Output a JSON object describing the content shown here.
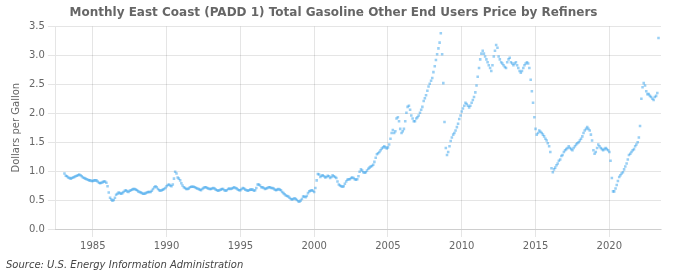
{
  "chart_data": {
    "type": "scatter",
    "title": "Monthly East Coast (PADD 1) Total Gasoline Other End Users Price by Refiners",
    "y_label": "Dollars per Gallon",
    "annotations": [
      "Source: U.S. Energy Information Administration"
    ],
    "marker": "square",
    "grid": true,
    "xlim": [
      1982.5,
      2023.5
    ],
    "xticks": [
      1985,
      1990,
      1995,
      2000,
      2005,
      2010,
      2015,
      2020
    ],
    "ylim": [
      0.0,
      3.5
    ],
    "yticks": [
      {
        "value": 0.0,
        "label": "0.0"
      },
      0.5,
      {
        "value": 1.0,
        "label": "1.0"
      },
      1.5,
      {
        "value": 2.0,
        "label": "2.0"
      },
      2.5,
      {
        "value": 3.0,
        "label": "3.0"
      },
      3.5
    ],
    "x": [
      1983.08,
      1983.17,
      1983.25,
      1983.33,
      1983.42,
      1983.5,
      1983.58,
      1983.67,
      1983.75,
      1983.83,
      1983.92,
      1984.0,
      1984.08,
      1984.17,
      1984.25,
      1984.33,
      1984.42,
      1984.5,
      1984.58,
      1984.67,
      1984.75,
      1984.83,
      1984.92,
      1985.0,
      1985.08,
      1985.17,
      1985.25,
      1985.33,
      1985.42,
      1985.5,
      1985.58,
      1985.67,
      1985.75,
      1985.83,
      1985.92,
      1986.0,
      1986.08,
      1986.17,
      1986.25,
      1986.33,
      1986.42,
      1986.5,
      1986.58,
      1986.67,
      1986.75,
      1986.83,
      1986.92,
      1987.0,
      1987.08,
      1987.17,
      1987.25,
      1987.33,
      1987.42,
      1987.5,
      1987.58,
      1987.67,
      1987.75,
      1987.83,
      1987.92,
      1988.0,
      1988.08,
      1988.17,
      1988.25,
      1988.33,
      1988.42,
      1988.5,
      1988.58,
      1988.67,
      1988.75,
      1988.83,
      1988.92,
      1989.0,
      1989.08,
      1989.17,
      1989.25,
      1989.33,
      1989.42,
      1989.5,
      1989.58,
      1989.67,
      1989.75,
      1989.83,
      1989.92,
      1990.0,
      1990.08,
      1990.17,
      1990.25,
      1990.33,
      1990.42,
      1990.5,
      1990.58,
      1990.67,
      1990.75,
      1990.83,
      1990.92,
      1991.0,
      1991.08,
      1991.17,
      1991.25,
      1991.33,
      1991.42,
      1991.5,
      1991.58,
      1991.67,
      1991.75,
      1991.83,
      1991.92,
      1992.0,
      1992.08,
      1992.17,
      1992.25,
      1992.33,
      1992.42,
      1992.5,
      1992.58,
      1992.67,
      1992.75,
      1992.83,
      1992.92,
      1993.0,
      1993.08,
      1993.17,
      1993.25,
      1993.33,
      1993.42,
      1993.5,
      1993.58,
      1993.67,
      1993.75,
      1993.83,
      1993.92,
      1994.0,
      1994.08,
      1994.17,
      1994.25,
      1994.33,
      1994.42,
      1994.5,
      1994.58,
      1994.67,
      1994.75,
      1994.83,
      1994.92,
      1995.0,
      1995.08,
      1995.17,
      1995.25,
      1995.33,
      1995.42,
      1995.5,
      1995.58,
      1995.67,
      1995.75,
      1995.83,
      1995.92,
      1996.0,
      1996.08,
      1996.17,
      1996.25,
      1996.33,
      1996.42,
      1996.5,
      1996.58,
      1996.67,
      1996.75,
      1996.83,
      1996.92,
      1997.0,
      1997.08,
      1997.17,
      1997.25,
      1997.33,
      1997.42,
      1997.5,
      1997.58,
      1997.67,
      1997.75,
      1997.83,
      1997.92,
      1998.0,
      1998.08,
      1998.17,
      1998.25,
      1998.33,
      1998.42,
      1998.5,
      1998.58,
      1998.67,
      1998.75,
      1998.83,
      1998.92,
      1999.0,
      1999.08,
      1999.17,
      1999.25,
      1999.33,
      1999.42,
      1999.5,
      1999.58,
      1999.67,
      1999.75,
      1999.83,
      1999.92,
      2000.0,
      2000.08,
      2000.17,
      2000.25,
      2000.33,
      2000.42,
      2000.5,
      2000.58,
      2000.67,
      2000.75,
      2000.83,
      2000.92,
      2001.0,
      2001.08,
      2001.17,
      2001.25,
      2001.33,
      2001.42,
      2001.5,
      2001.58,
      2001.67,
      2001.75,
      2001.83,
      2001.92,
      2002.0,
      2002.08,
      2002.17,
      2002.25,
      2002.33,
      2002.42,
      2002.5,
      2002.58,
      2002.67,
      2002.75,
      2002.83,
      2002.92,
      2003.0,
      2003.08,
      2003.17,
      2003.25,
      2003.33,
      2003.42,
      2003.5,
      2003.58,
      2003.67,
      2003.75,
      2003.83,
      2003.92,
      2004.0,
      2004.08,
      2004.17,
      2004.25,
      2004.33,
      2004.42,
      2004.5,
      2004.58,
      2004.67,
      2004.75,
      2004.83,
      2004.92,
      2005.0,
      2005.08,
      2005.17,
      2005.25,
      2005.33,
      2005.42,
      2005.5,
      2005.58,
      2005.67,
      2005.75,
      2005.83,
      2005.92,
      2006.0,
      2006.08,
      2006.17,
      2006.25,
      2006.33,
      2006.42,
      2006.5,
      2006.58,
      2006.67,
      2006.75,
      2006.83,
      2006.92,
      2007.0,
      2007.08,
      2007.17,
      2007.25,
      2007.33,
      2007.42,
      2007.5,
      2007.58,
      2007.67,
      2007.75,
      2007.83,
      2007.92,
      2008.0,
      2008.08,
      2008.17,
      2008.25,
      2008.33,
      2008.42,
      2008.5,
      2008.58,
      2008.67,
      2008.75,
      2008.83,
      2008.92,
      2009.0,
      2009.08,
      2009.17,
      2009.25,
      2009.33,
      2009.42,
      2009.5,
      2009.58,
      2009.67,
      2009.75,
      2009.83,
      2009.92,
      2010.0,
      2010.08,
      2010.17,
      2010.25,
      2010.33,
      2010.42,
      2010.5,
      2010.58,
      2010.67,
      2010.75,
      2010.83,
      2010.92,
      2011.0,
      2011.08,
      2011.17,
      2011.25,
      2011.33,
      2011.42,
      2011.5,
      2011.58,
      2011.67,
      2011.75,
      2011.83,
      2011.92,
      2012.0,
      2012.08,
      2012.17,
      2012.25,
      2012.33,
      2012.42,
      2012.5,
      2012.58,
      2012.67,
      2012.75,
      2012.83,
      2012.92,
      2013.0,
      2013.08,
      2013.17,
      2013.25,
      2013.33,
      2013.42,
      2013.5,
      2013.58,
      2013.67,
      2013.75,
      2013.83,
      2013.92,
      2014.0,
      2014.08,
      2014.17,
      2014.25,
      2014.33,
      2014.42,
      2014.5,
      2014.58,
      2014.67,
      2014.75,
      2014.83,
      2014.92,
      2015.0,
      2015.08,
      2015.17,
      2015.25,
      2015.33,
      2015.42,
      2015.5,
      2015.58,
      2015.67,
      2015.75,
      2015.83,
      2015.92,
      2016.0,
      2016.08,
      2016.17,
      2016.25,
      2016.33,
      2016.42,
      2016.5,
      2016.58,
      2016.67,
      2016.75,
      2016.83,
      2016.92,
      2017.0,
      2017.08,
      2017.17,
      2017.25,
      2017.33,
      2017.42,
      2017.5,
      2017.58,
      2017.67,
      2017.75,
      2017.83,
      2017.92,
      2018.0,
      2018.08,
      2018.17,
      2018.25,
      2018.33,
      2018.42,
      2018.5,
      2018.58,
      2018.67,
      2018.75,
      2018.83,
      2018.92,
      2019.0,
      2019.08,
      2019.17,
      2019.25,
      2019.33,
      2019.42,
      2019.5,
      2019.58,
      2019.67,
      2019.75,
      2019.83,
      2019.92,
      2020.0,
      2020.08,
      2020.17,
      2020.25,
      2020.33,
      2020.42,
      2020.5,
      2020.58,
      2020.67,
      2020.75,
      2020.83,
      2020.92,
      2021.0,
      2021.08,
      2021.17,
      2021.25,
      2021.33,
      2021.42,
      2021.5,
      2021.58,
      2021.67,
      2021.75,
      2021.83,
      2021.92,
      2022.0,
      2022.08,
      2022.17,
      2022.25,
      2022.33,
      2022.42,
      2022.5,
      2022.58,
      2022.67,
      2022.75,
      2022.83,
      2022.92,
      2023.0,
      2023.08,
      2023.17,
      2023.25,
      2023.33
    ],
    "values": [
      0.96,
      0.92,
      0.91,
      0.89,
      0.88,
      0.87,
      0.88,
      0.89,
      0.9,
      0.91,
      0.92,
      0.93,
      0.94,
      0.93,
      0.91,
      0.89,
      0.88,
      0.87,
      0.86,
      0.85,
      0.84,
      0.84,
      0.83,
      0.83,
      0.84,
      0.84,
      0.84,
      0.82,
      0.8,
      0.79,
      0.8,
      0.81,
      0.82,
      0.82,
      0.8,
      0.74,
      0.63,
      0.54,
      0.51,
      0.49,
      0.5,
      0.54,
      0.59,
      0.61,
      0.63,
      0.62,
      0.61,
      0.62,
      0.64,
      0.66,
      0.67,
      0.65,
      0.64,
      0.66,
      0.67,
      0.68,
      0.69,
      0.69,
      0.68,
      0.67,
      0.65,
      0.64,
      0.63,
      0.62,
      0.61,
      0.61,
      0.62,
      0.63,
      0.64,
      0.64,
      0.64,
      0.66,
      0.69,
      0.72,
      0.74,
      0.72,
      0.69,
      0.67,
      0.66,
      0.67,
      0.68,
      0.69,
      0.71,
      0.74,
      0.76,
      0.77,
      0.75,
      0.74,
      0.77,
      0.87,
      0.99,
      0.96,
      0.89,
      0.87,
      0.84,
      0.79,
      0.75,
      0.72,
      0.71,
      0.69,
      0.69,
      0.7,
      0.72,
      0.73,
      0.73,
      0.73,
      0.72,
      0.71,
      0.7,
      0.69,
      0.68,
      0.67,
      0.69,
      0.71,
      0.72,
      0.72,
      0.71,
      0.7,
      0.69,
      0.69,
      0.7,
      0.71,
      0.7,
      0.68,
      0.67,
      0.66,
      0.67,
      0.68,
      0.69,
      0.69,
      0.67,
      0.66,
      0.67,
      0.69,
      0.7,
      0.69,
      0.7,
      0.71,
      0.72,
      0.71,
      0.7,
      0.68,
      0.67,
      0.67,
      0.69,
      0.71,
      0.7,
      0.68,
      0.67,
      0.66,
      0.67,
      0.68,
      0.68,
      0.68,
      0.66,
      0.67,
      0.71,
      0.77,
      0.77,
      0.75,
      0.72,
      0.72,
      0.71,
      0.69,
      0.7,
      0.71,
      0.72,
      0.72,
      0.71,
      0.71,
      0.7,
      0.68,
      0.67,
      0.68,
      0.69,
      0.68,
      0.67,
      0.64,
      0.62,
      0.6,
      0.58,
      0.57,
      0.56,
      0.54,
      0.52,
      0.51,
      0.52,
      0.53,
      0.52,
      0.5,
      0.48,
      0.47,
      0.49,
      0.52,
      0.56,
      0.56,
      0.55,
      0.57,
      0.62,
      0.65,
      0.66,
      0.67,
      0.66,
      0.64,
      0.71,
      0.84,
      0.95,
      0.94,
      0.9,
      0.92,
      0.93,
      0.91,
      0.89,
      0.9,
      0.92,
      0.91,
      0.88,
      0.9,
      0.93,
      0.91,
      0.9,
      0.88,
      0.82,
      0.77,
      0.75,
      0.74,
      0.73,
      0.74,
      0.78,
      0.82,
      0.85,
      0.86,
      0.86,
      0.88,
      0.89,
      0.88,
      0.86,
      0.85,
      0.86,
      0.91,
      0.99,
      1.03,
      1.01,
      0.98,
      0.97,
      0.98,
      1.01,
      1.04,
      1.06,
      1.08,
      1.09,
      1.11,
      1.16,
      1.23,
      1.29,
      1.31,
      1.33,
      1.36,
      1.39,
      1.41,
      1.43,
      1.41,
      1.39,
      1.41,
      1.46,
      1.56,
      1.66,
      1.71,
      1.66,
      1.69,
      1.91,
      1.93,
      1.86,
      1.73,
      1.66,
      1.69,
      1.73,
      1.86,
      2.01,
      2.11,
      2.13,
      2.06,
      1.96,
      1.91,
      1.86,
      1.86,
      1.91,
      1.93,
      1.96,
      2.01,
      2.06,
      2.11,
      2.21,
      2.26,
      2.31,
      2.39,
      2.46,
      2.51,
      2.56,
      2.61,
      2.71,
      2.81,
      2.92,
      3.02,
      3.12,
      3.22,
      3.38,
      3.02,
      2.52,
      1.85,
      1.4,
      1.28,
      1.33,
      1.43,
      1.52,
      1.58,
      1.63,
      1.66,
      1.7,
      1.76,
      1.82,
      1.9,
      1.96,
      2.03,
      2.08,
      2.13,
      2.18,
      2.16,
      2.13,
      2.1,
      2.13,
      2.18,
      2.23,
      2.28,
      2.36,
      2.48,
      2.63,
      2.78,
      2.93,
      3.03,
      3.08,
      3.03,
      2.98,
      2.93,
      2.88,
      2.83,
      2.78,
      2.73,
      2.83,
      2.98,
      3.08,
      3.18,
      3.13,
      2.98,
      2.93,
      2.88,
      2.86,
      2.83,
      2.8,
      2.78,
      2.88,
      2.93,
      2.96,
      2.88,
      2.86,
      2.83,
      2.86,
      2.88,
      2.83,
      2.78,
      2.73,
      2.7,
      2.73,
      2.78,
      2.83,
      2.86,
      2.88,
      2.86,
      2.78,
      2.58,
      2.38,
      2.18,
      1.93,
      1.73,
      1.63,
      1.66,
      1.7,
      1.68,
      1.66,
      1.63,
      1.6,
      1.56,
      1.53,
      1.48,
      1.43,
      1.33,
      1.05,
      0.98,
      1.03,
      1.06,
      1.1,
      1.13,
      1.18,
      1.2,
      1.26,
      1.28,
      1.33,
      1.36,
      1.38,
      1.4,
      1.43,
      1.4,
      1.38,
      1.36,
      1.4,
      1.43,
      1.46,
      1.48,
      1.5,
      1.53,
      1.56,
      1.6,
      1.66,
      1.7,
      1.73,
      1.76,
      1.73,
      1.7,
      1.63,
      1.53,
      1.36,
      1.3,
      1.33,
      1.4,
      1.46,
      1.43,
      1.4,
      1.38,
      1.36,
      1.38,
      1.4,
      1.38,
      1.36,
      1.33,
      1.18,
      0.88,
      0.65,
      0.65,
      0.7,
      0.76,
      0.83,
      0.9,
      0.93,
      0.96,
      0.98,
      1.03,
      1.08,
      1.13,
      1.2,
      1.28,
      1.3,
      1.33,
      1.36,
      1.38,
      1.43,
      1.46,
      1.5,
      1.58,
      1.78,
      2.25,
      2.45,
      2.52,
      2.48,
      2.38,
      2.33,
      2.33,
      2.3,
      2.28,
      2.25,
      2.23,
      2.28,
      2.3,
      2.35,
      3.3
    ]
  }
}
